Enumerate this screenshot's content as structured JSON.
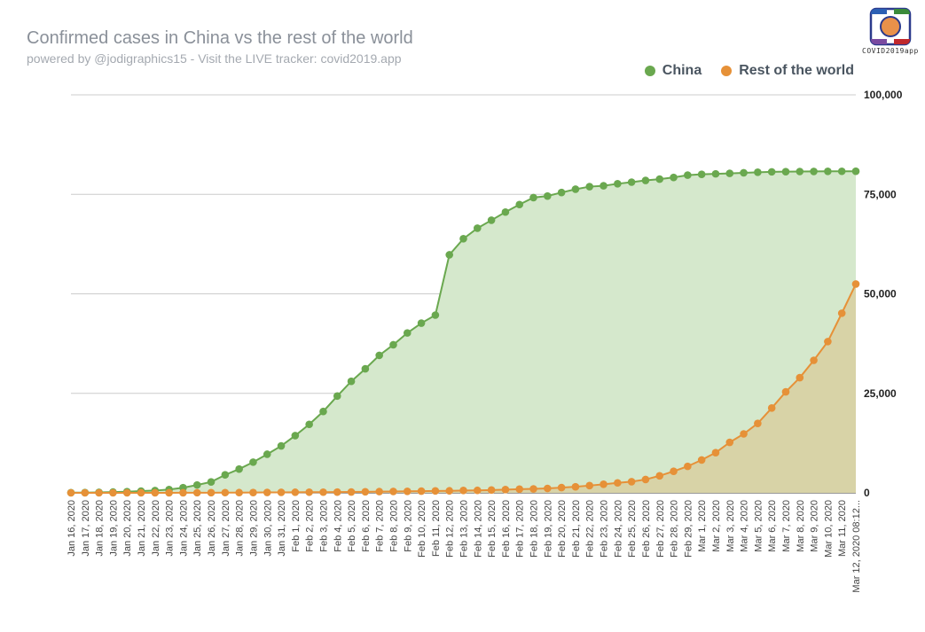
{
  "header": {
    "title": "Confirmed cases in China vs the rest of the world",
    "subtitle": "powered by @jodigraphics15 - Visit the LIVE tracker: covid2019.app"
  },
  "logo": {
    "text": "COVID2019app",
    "icon": "covid-logo-icon"
  },
  "colors": {
    "china": "#6aa84f",
    "china_fill": "#d5e8cc",
    "rest": "#e69138",
    "rest_fill": "#d8cfa0",
    "grid": "#cccccc"
  },
  "chart_data": {
    "type": "area",
    "title": "Confirmed cases in China vs the rest of the world",
    "xlabel": "",
    "ylabel": "",
    "ylim": [
      0,
      100000
    ],
    "yticks": [
      "0",
      "25,000",
      "50,000",
      "75,000",
      "100,000"
    ],
    "yticks_values": [
      0,
      25000,
      50000,
      75000,
      100000
    ],
    "grid": true,
    "legend_position": "top-right",
    "x": [
      "Jan 16, 2020",
      "Jan 17, 2020",
      "Jan 18, 2020",
      "Jan 19, 2020",
      "Jan 20, 2020",
      "Jan 21, 2020",
      "Jan 22, 2020",
      "Jan 23, 2020",
      "Jan 24, 2020",
      "Jan 25, 2020",
      "Jan 26, 2020",
      "Jan 27, 2020",
      "Jan 28, 2020",
      "Jan 29, 2020",
      "Jan 30, 2020",
      "Jan 31, 2020",
      "Feb 1, 2020",
      "Feb 2, 2020",
      "Feb 3, 2020",
      "Feb 4, 2020",
      "Feb 5, 2020",
      "Feb 6, 2020",
      "Feb 7, 2020",
      "Feb 8, 2020",
      "Feb 9, 2020",
      "Feb 10, 2020",
      "Feb 11, 2020",
      "Feb 12, 2020",
      "Feb 13, 2020",
      "Feb 14, 2020",
      "Feb 15, 2020",
      "Feb 16, 2020",
      "Feb 17, 2020",
      "Feb 18, 2020",
      "Feb 19, 2020",
      "Feb 20, 2020",
      "Feb 21, 2020",
      "Feb 22, 2020",
      "Feb 23, 2020",
      "Feb 24, 2020",
      "Feb 25, 2020",
      "Feb 26, 2020",
      "Feb 27, 2020",
      "Feb 28, 2020",
      "Feb 29, 2020",
      "Mar 1, 2020",
      "Mar 2, 2020",
      "Mar 3, 2020",
      "Mar 4, 2020",
      "Mar 5, 2020",
      "Mar 6, 2020",
      "Mar 7, 2020",
      "Mar 8, 2020",
      "Mar 9, 2020",
      "Mar 10, 2020",
      "Mar 11, 2020",
      "Mar 12, 2020 08:12..."
    ],
    "series": [
      {
        "name": "China",
        "values": [
          45,
          62,
          121,
          198,
          291,
          440,
          571,
          830,
          1287,
          1975,
          2744,
          4515,
          5974,
          7711,
          9692,
          11791,
          14380,
          17205,
          20438,
          24324,
          28018,
          31161,
          34546,
          37198,
          40171,
          42638,
          44653,
          59804,
          63851,
          66492,
          68500,
          70548,
          72436,
          74185,
          74576,
          75465,
          76288,
          76936,
          77150,
          77658,
          78064,
          78497,
          78824,
          79251,
          79824,
          80026,
          80151,
          80270,
          80409,
          80552,
          80651,
          80695,
          80735,
          80754,
          80778,
          80793,
          80796
        ]
      },
      {
        "name": "Rest of the world",
        "values": [
          0,
          0,
          0,
          0,
          2,
          3,
          7,
          11,
          16,
          27,
          35,
          57,
          59,
          77,
          98,
          120,
          144,
          163,
          167,
          188,
          217,
          260,
          310,
          339,
          381,
          426,
          479,
          506,
          593,
          616,
          705,
          817,
          927,
          990,
          1110,
          1314,
          1519,
          1823,
          2156,
          2507,
          2802,
          3356,
          4281,
          5421,
          6656,
          8261,
          10095,
          12683,
          14810,
          17442,
          21318,
          25373,
          28939,
          33298,
          38001,
          45127,
          52458
        ]
      }
    ]
  }
}
